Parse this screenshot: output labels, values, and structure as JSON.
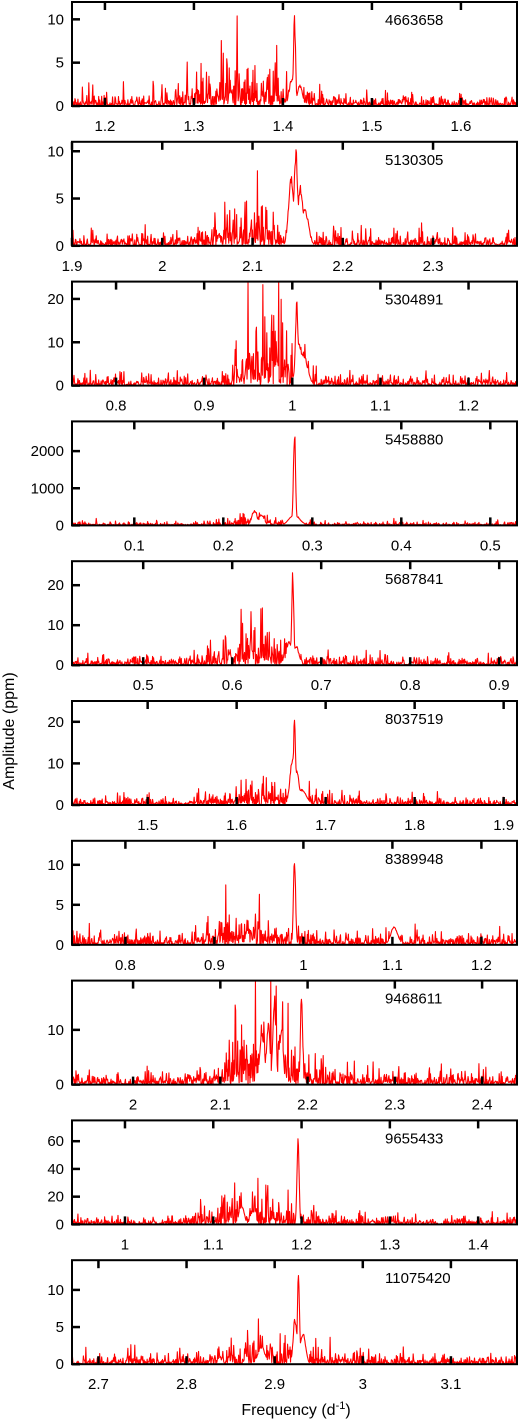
{
  "chart_data": {
    "type": "line",
    "ylabel": "Amplitude (ppm)",
    "xlabel_text": "Frequency (d",
    "xlabel_exp": "-1",
    "xlabel_close": ")",
    "series_color": "#ff0000",
    "panels": [
      {
        "label": "4663658",
        "xlim": [
          1.163,
          1.663
        ],
        "ylim": [
          0,
          12
        ],
        "xticks": [
          "1.2",
          "1.3",
          "1.4",
          "1.5",
          "1.6"
        ],
        "yticks": [
          0,
          5,
          10
        ],
        "noise": 0.5,
        "peaks": [
          [
            1.413,
            10.5,
            0.0012
          ],
          [
            1.41,
            3.2,
            0.003
          ],
          [
            1.419,
            2.5,
            0.003
          ]
        ],
        "bumps": [
          [
            1.355,
            2.2,
            0.04
          ]
        ]
      },
      {
        "label": "5130305",
        "xlim": [
          1.9,
          2.393
        ],
        "ylim": [
          0,
          11
        ],
        "xticks": [
          "1.9",
          "2",
          "2.1",
          "2.2",
          "2.3"
        ],
        "yticks": [
          0,
          5,
          10
        ],
        "noise": 0.5,
        "peaks": [
          [
            2.148,
            10.5,
            0.002
          ],
          [
            2.143,
            7.5,
            0.003
          ],
          [
            2.153,
            6.5,
            0.003
          ],
          [
            2.158,
            4.0,
            0.004
          ]
        ],
        "bumps": [
          [
            2.092,
            1.7,
            0.025
          ]
        ]
      },
      {
        "label": "5304891",
        "xlim": [
          0.75,
          1.255
        ],
        "ylim": [
          0,
          24
        ],
        "xticks": [
          "0.8",
          "0.9",
          "1",
          "1.1",
          "1.2"
        ],
        "yticks": [
          0,
          10,
          20
        ],
        "noise": 0.9,
        "peaks": [
          [
            1.005,
            20.0,
            0.0015
          ],
          [
            1.008,
            10.0,
            0.004
          ],
          [
            1.012,
            8.0,
            0.005
          ]
        ],
        "bumps": [
          [
            0.97,
            8.5,
            0.022
          ]
        ]
      },
      {
        "label": "5458880",
        "xlim": [
          0.03,
          0.53
        ],
        "ylim": [
          0,
          2800
        ],
        "xticks": [
          "0.1",
          "0.2",
          "0.3",
          "0.4",
          "0.5"
        ],
        "yticks": [
          0,
          1000,
          2000
        ],
        "noise": 35,
        "peaks": [
          [
            0.28,
            2700,
            0.0012
          ],
          [
            0.28,
            300,
            0.006
          ],
          [
            0.235,
            400,
            0.003
          ],
          [
            0.243,
            300,
            0.003
          ]
        ],
        "bumps": [
          [
            0.24,
            120,
            0.02
          ]
        ]
      },
      {
        "label": "5687841",
        "xlim": [
          0.42,
          0.92
        ],
        "ylim": [
          0,
          26
        ],
        "xticks": [
          "0.5",
          "0.6",
          "0.7",
          "0.8",
          "0.9"
        ],
        "yticks": [
          0,
          10,
          20
        ],
        "noise": 0.9,
        "peaks": [
          [
            0.668,
            23.5,
            0.0012
          ],
          [
            0.664,
            6.0,
            0.003
          ],
          [
            0.672,
            5.0,
            0.003
          ]
        ],
        "bumps": [
          [
            0.625,
            4.0,
            0.03
          ]
        ]
      },
      {
        "label": "8037519",
        "xlim": [
          1.415,
          1.915
        ],
        "ylim": [
          0,
          25
        ],
        "xticks": [
          "1.5",
          "1.6",
          "1.7",
          "1.8",
          "1.9"
        ],
        "yticks": [
          0,
          10,
          20
        ],
        "noise": 0.7,
        "peaks": [
          [
            1.665,
            22.0,
            0.0012
          ],
          [
            1.663,
            12.0,
            0.003
          ],
          [
            1.667,
            9.0,
            0.003
          ],
          [
            1.672,
            4.0,
            0.006
          ]
        ],
        "bumps": [
          [
            1.64,
            1.5,
            0.05
          ]
        ]
      },
      {
        "label": "8389948",
        "xlim": [
          0.74,
          1.24
        ],
        "ylim": [
          0,
          13
        ],
        "xticks": [
          "0.8",
          "0.9",
          "1",
          "1.1",
          "1.2"
        ],
        "yticks": [
          0,
          5,
          10
        ],
        "noise": 0.55,
        "peaks": [
          [
            0.99,
            11.8,
            0.0012
          ],
          [
            1.102,
            2.3,
            0.004
          ]
        ],
        "bumps": [
          [
            0.94,
            1.5,
            0.025
          ]
        ]
      },
      {
        "label": "9468611",
        "xlim": [
          1.93,
          2.44
        ],
        "ylim": [
          0,
          19
        ],
        "xticks": [
          "2",
          "2.1",
          "2.2",
          "2.3",
          "2.4"
        ],
        "yticks": [
          0,
          10
        ],
        "noise": 0.9,
        "peaks": [
          [
            2.193,
            18.0,
            0.0012
          ],
          [
            2.162,
            14.5,
            0.002
          ],
          [
            2.155,
            12.0,
            0.002
          ],
          [
            2.17,
            11.0,
            0.002
          ],
          [
            2.148,
            9.5,
            0.003
          ]
        ],
        "bumps": [
          [
            2.15,
            5.5,
            0.03
          ]
        ]
      },
      {
        "label": "9655433",
        "xlim": [
          0.94,
          1.444
        ],
        "ylim": [
          0,
          75
        ],
        "xticks": [
          "1",
          "1.1",
          "1.2",
          "1.3",
          "1.4"
        ],
        "yticks": [
          0,
          20,
          40,
          60
        ],
        "noise": 2.2,
        "peaks": [
          [
            1.196,
            66.0,
            0.0012
          ],
          [
            1.132,
            14.0,
            0.003
          ],
          [
            1.145,
            10.0,
            0.003
          ]
        ],
        "bumps": [
          [
            1.14,
            8.0,
            0.035
          ]
        ]
      },
      {
        "label": "11075420",
        "xlim": [
          2.67,
          3.175
        ],
        "ylim": [
          0,
          14
        ],
        "xticks": [
          "2.7",
          "2.8",
          "2.9",
          "3",
          "3.1"
        ],
        "yticks": [
          0,
          5,
          10
        ],
        "noise": 0.5,
        "peaks": [
          [
            2.927,
            13.0,
            0.0012
          ],
          [
            2.923,
            6.5,
            0.002
          ],
          [
            2.932,
            4.5,
            0.003
          ],
          [
            2.885,
            2.5,
            0.004
          ]
        ],
        "bumps": [
          [
            2.9,
            1.2,
            0.04
          ]
        ]
      }
    ]
  }
}
